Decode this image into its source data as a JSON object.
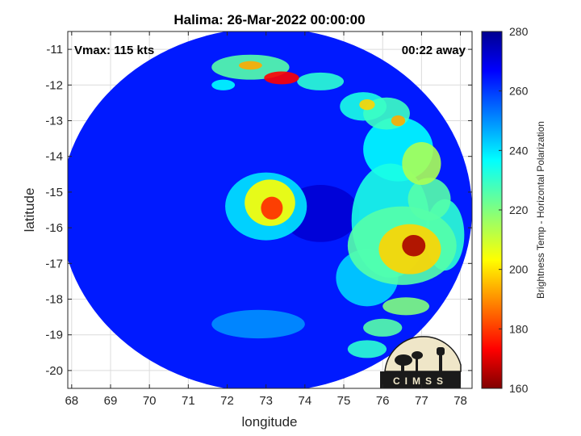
{
  "chart_data": {
    "type": "heatmap",
    "title": "Halima: 26-Mar-2022 00:00:00",
    "xlabel": "longitude",
    "ylabel": "latitude",
    "xlim": [
      67.9,
      78.3
    ],
    "ylim": [
      -20.5,
      -10.5
    ],
    "xticks": [
      68,
      69,
      70,
      71,
      72,
      73,
      74,
      75,
      76,
      77,
      78
    ],
    "yticks": [
      -11,
      -12,
      -13,
      -14,
      -15,
      -16,
      -17,
      -18,
      -19,
      -20
    ],
    "grid": true,
    "annotations": {
      "top_left": "Vmax: 115 kts",
      "top_right": "00:22 away"
    },
    "colorbar": {
      "label": "Brightness Temp - Horizontal Polarization",
      "range": [
        160,
        280
      ],
      "ticks": [
        160,
        180,
        200,
        220,
        240,
        260,
        280
      ],
      "colormap": "jet"
    },
    "swath": {
      "center": [
        73.0,
        -15.5
      ],
      "radius_lon": 5.3,
      "radius_lat": 5.1
    },
    "background_tb": 262,
    "features": [
      {
        "lon": 73.15,
        "lat": -15.45,
        "tb": 180,
        "rlon": 0.28,
        "rlat": 0.32
      },
      {
        "lon": 73.1,
        "lat": -15.3,
        "tb": 205,
        "rlon": 0.65,
        "rlat": 0.65
      },
      {
        "lon": 73.0,
        "lat": -15.4,
        "tb": 238,
        "rlon": 1.05,
        "rlat": 0.95
      },
      {
        "lon": 76.8,
        "lat": -16.5,
        "tb": 165,
        "rlon": 0.3,
        "rlat": 0.3
      },
      {
        "lon": 76.7,
        "lat": -16.6,
        "tb": 200,
        "rlon": 0.8,
        "rlat": 0.7
      },
      {
        "lon": 76.5,
        "lat": -16.5,
        "tb": 225,
        "rlon": 1.4,
        "rlat": 1.1
      },
      {
        "lon": 76.2,
        "lat": -15.8,
        "tb": 232,
        "rlon": 1.0,
        "rlat": 1.6
      },
      {
        "lon": 77.0,
        "lat": -14.2,
        "tb": 215,
        "rlon": 0.5,
        "rlat": 0.6
      },
      {
        "lon": 76.4,
        "lat": -13.8,
        "tb": 235,
        "rlon": 0.9,
        "rlat": 0.9
      },
      {
        "lon": 76.1,
        "lat": -12.8,
        "tb": 228,
        "rlon": 0.6,
        "rlat": 0.45
      },
      {
        "lon": 75.5,
        "lat": -12.6,
        "tb": 232,
        "rlon": 0.6,
        "rlat": 0.4
      },
      {
        "lon": 76.4,
        "lat": -13.0,
        "tb": 195,
        "rlon": 0.18,
        "rlat": 0.15
      },
      {
        "lon": 75.6,
        "lat": -12.55,
        "tb": 200,
        "rlon": 0.2,
        "rlat": 0.15
      },
      {
        "lon": 73.4,
        "lat": -11.8,
        "tb": 175,
        "rlon": 0.45,
        "rlat": 0.18
      },
      {
        "lon": 72.6,
        "lat": -11.5,
        "tb": 225,
        "rlon": 1.0,
        "rlat": 0.35
      },
      {
        "lon": 72.6,
        "lat": -11.45,
        "tb": 195,
        "rlon": 0.3,
        "rlat": 0.12
      },
      {
        "lon": 71.9,
        "lat": -12.0,
        "tb": 235,
        "rlon": 0.3,
        "rlat": 0.15
      },
      {
        "lon": 74.4,
        "lat": -11.9,
        "tb": 230,
        "rlon": 0.6,
        "rlat": 0.25
      },
      {
        "lon": 77.2,
        "lat": -15.2,
        "tb": 225,
        "rlon": 0.55,
        "rlat": 0.6
      },
      {
        "lon": 77.6,
        "lat": -16.2,
        "tb": 230,
        "rlon": 0.5,
        "rlat": 1.0
      },
      {
        "lon": 76.6,
        "lat": -18.2,
        "tb": 220,
        "rlon": 0.6,
        "rlat": 0.25
      },
      {
        "lon": 76.0,
        "lat": -18.8,
        "tb": 225,
        "rlon": 0.5,
        "rlat": 0.25
      },
      {
        "lon": 75.6,
        "lat": -19.4,
        "tb": 230,
        "rlon": 0.5,
        "rlat": 0.25
      },
      {
        "lon": 75.6,
        "lat": -17.4,
        "tb": 240,
        "rlon": 0.8,
        "rlat": 0.8
      },
      {
        "lon": 74.4,
        "lat": -15.6,
        "tb": 270,
        "rlon": 1.0,
        "rlat": 0.8
      },
      {
        "lon": 72.8,
        "lat": -18.7,
        "tb": 248,
        "rlon": 1.2,
        "rlat": 0.4
      }
    ],
    "logo": {
      "text": "CIMSS"
    }
  }
}
